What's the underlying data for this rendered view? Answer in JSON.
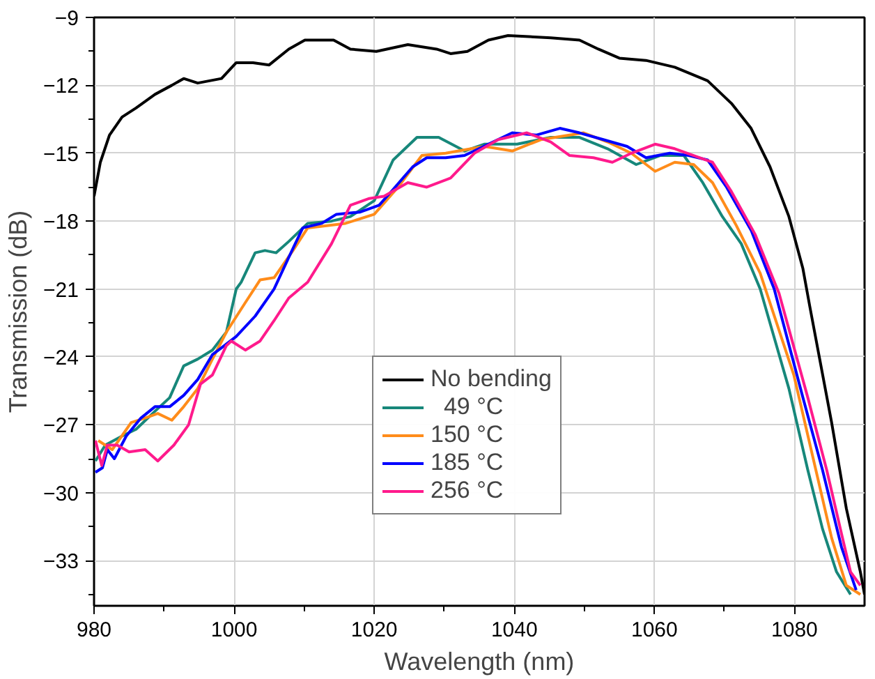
{
  "chart_data": {
    "type": "line",
    "xlabel": "Wavelength (nm)",
    "ylabel": "Transmission (dB)",
    "xlim": [
      980,
      1090
    ],
    "ylim": [
      -35,
      -9
    ],
    "xticks": [
      980,
      {
        "value": 990,
        "label": null
      },
      1000,
      {
        "value": 1010,
        "label": null
      },
      1020,
      {
        "value": 1030,
        "label": null
      },
      1040,
      {
        "value": 1050,
        "label": null
      },
      1060,
      {
        "value": 1070,
        "label": null
      },
      1080
    ],
    "yticks": [
      -9,
      {
        "value": -10.5,
        "label": null
      },
      -12,
      {
        "value": -13.5,
        "label": null
      },
      -15,
      {
        "value": -16.5,
        "label": null
      },
      -18,
      {
        "value": -19.5,
        "label": null
      },
      -21,
      {
        "value": -22.5,
        "label": null
      },
      -24,
      {
        "value": -25.5,
        "label": null
      },
      -27,
      {
        "value": -28.5,
        "label": null
      },
      -30,
      {
        "value": -31.5,
        "label": null
      },
      -33,
      {
        "value": -34.5,
        "label": null
      }
    ],
    "grid": true,
    "legend": "center",
    "marker": "none",
    "line_style": "solid",
    "series": [
      {
        "name": "No bending",
        "color": "#000000",
        "x": [
          980,
          980.9,
          982.2,
          984,
          986,
          988.7,
          991.1,
          992.8,
          994.8,
          998.2,
          1000.3,
          1002.7,
          1005,
          1007.8,
          1010.1,
          1014.2,
          1016.6,
          1020.3,
          1024.8,
          1028.9,
          1030.9,
          1033.3,
          1036.3,
          1039.1,
          1045.2,
          1049.3,
          1052,
          1055,
          1058.8,
          1062.9,
          1067.6,
          1071,
          1073.8,
          1076.5,
          1079.2,
          1081.2,
          1082.2,
          1085.3,
          1087.4,
          1089.4,
          1090
        ],
        "values": [
          -16.9,
          -15.4,
          -14.2,
          -13.4,
          -13.0,
          -12.4,
          -12.0,
          -11.7,
          -11.9,
          -11.7,
          -11.0,
          -11.0,
          -11.1,
          -10.4,
          -10.0,
          -10.0,
          -10.4,
          -10.5,
          -10.2,
          -10.4,
          -10.6,
          -10.5,
          -10.0,
          -9.8,
          -9.9,
          -10.0,
          -10.4,
          -10.8,
          -10.9,
          -11.2,
          -11.8,
          -12.8,
          -13.9,
          -15.6,
          -17.8,
          -20.1,
          -21.8,
          -26.9,
          -30.7,
          -33.5,
          -34.5
        ]
      },
      {
        "name": "  49 °C",
        "color": "#17877a",
        "x": [
          980.2,
          981.6,
          984,
          986,
          988.7,
          990.8,
          992.8,
          994.8,
          996.9,
          998.9,
          1000.3,
          1001,
          1003,
          1004.4,
          1006,
          1007.8,
          1010.5,
          1013.9,
          1016.6,
          1020,
          1022.7,
          1026.1,
          1029.2,
          1032.9,
          1035.7,
          1040.4,
          1045.2,
          1049.3,
          1053.3,
          1057.4,
          1060.8,
          1064.2,
          1066.9,
          1069.7,
          1072.4,
          1075.1,
          1079.2,
          1081.9,
          1084,
          1086,
          1088
        ],
        "values": [
          -28.6,
          -27.9,
          -27.5,
          -27.2,
          -26.4,
          -25.8,
          -24.4,
          -24.1,
          -23.7,
          -22.9,
          -21.0,
          -20.7,
          -19.4,
          -19.3,
          -19.4,
          -18.9,
          -18.1,
          -18.0,
          -17.8,
          -17.1,
          -15.3,
          -14.3,
          -14.3,
          -14.9,
          -14.6,
          -14.6,
          -14.3,
          -14.3,
          -14.8,
          -15.5,
          -15.1,
          -15.1,
          -16.3,
          -17.8,
          -19.0,
          -21.0,
          -25.4,
          -29.0,
          -31.6,
          -33.5,
          -34.5
        ]
      },
      {
        "name": "150 °C",
        "color": "#ff8c1a",
        "x": [
          980.6,
          982.6,
          985.3,
          987.3,
          989.1,
          991.1,
          992.8,
          994.8,
          996.9,
          998.9,
          1001.6,
          1003.7,
          1005.7,
          1008.4,
          1010.5,
          1015.9,
          1020,
          1023.4,
          1026.8,
          1030.2,
          1035.7,
          1039.7,
          1043.8,
          1049.9,
          1053.3,
          1056.7,
          1060.1,
          1062.9,
          1065.6,
          1068.3,
          1071.7,
          1075.1,
          1079.9,
          1082.6,
          1085.3,
          1087.4,
          1089.4
        ],
        "values": [
          -27.7,
          -28.1,
          -26.9,
          -26.7,
          -26.5,
          -26.8,
          -26.2,
          -25.4,
          -24.1,
          -22.9,
          -21.6,
          -20.6,
          -20.5,
          -19.3,
          -18.3,
          -18.1,
          -17.7,
          -16.5,
          -15.1,
          -15.0,
          -14.7,
          -14.9,
          -14.4,
          -14.1,
          -14.5,
          -15.0,
          -15.8,
          -15.4,
          -15.5,
          -16.3,
          -18.2,
          -20.3,
          -24.8,
          -28.4,
          -32.0,
          -34.1,
          -34.5
        ]
      },
      {
        "name": "185 °C",
        "color": "#0000ff",
        "x": [
          980.2,
          981.2,
          981.9,
          982.9,
          984.6,
          986.7,
          988.7,
          990.8,
          992.8,
          994.8,
          996.9,
          998.2,
          1000.3,
          1003,
          1005.7,
          1007.8,
          1009.8,
          1012.5,
          1014.6,
          1018,
          1020.7,
          1022.7,
          1025.5,
          1027.5,
          1030.2,
          1032.9,
          1036.3,
          1039.7,
          1043.1,
          1046.5,
          1049.3,
          1052.7,
          1056.1,
          1058.8,
          1062.2,
          1064.9,
          1067.6,
          1070.3,
          1073.8,
          1077.1,
          1081.2,
          1084,
          1086.7,
          1088.8
        ],
        "values": [
          -29.1,
          -28.9,
          -28.1,
          -28.5,
          -27.5,
          -26.7,
          -26.2,
          -26.2,
          -25.7,
          -25.0,
          -23.9,
          -23.6,
          -23.1,
          -22.2,
          -21.0,
          -19.6,
          -18.3,
          -18.1,
          -17.7,
          -17.6,
          -17.3,
          -16.6,
          -15.6,
          -15.2,
          -15.2,
          -15.1,
          -14.6,
          -14.1,
          -14.2,
          -13.9,
          -14.1,
          -14.4,
          -14.7,
          -15.2,
          -15.0,
          -15.1,
          -15.3,
          -16.5,
          -18.4,
          -21.0,
          -25.8,
          -29.0,
          -32.4,
          -34.3
        ]
      },
      {
        "name": "256 °C",
        "color": "#ff1a8c",
        "x": [
          980.2,
          981.1,
          981.9,
          983.3,
          985,
          987.3,
          989.1,
          991.4,
          993.5,
          995.2,
          996.9,
          998.9,
          999.6,
          1001.6,
          1003.7,
          1005.7,
          1007.8,
          1010.5,
          1013.9,
          1016.6,
          1019.3,
          1021.4,
          1024.8,
          1027.5,
          1030.9,
          1034.3,
          1037.7,
          1041.8,
          1045.2,
          1047.9,
          1051.3,
          1054,
          1056.7,
          1060.1,
          1062.9,
          1065.6,
          1068.3,
          1071,
          1074.4,
          1077.8,
          1081.9,
          1084.6,
          1086.7,
          1088,
          1089.4
        ],
        "values": [
          -27.7,
          -28.8,
          -27.9,
          -27.9,
          -28.2,
          -28.1,
          -28.6,
          -27.9,
          -27.0,
          -25.2,
          -24.8,
          -23.5,
          -23.3,
          -23.7,
          -23.3,
          -22.4,
          -21.4,
          -20.7,
          -19.0,
          -17.3,
          -17.0,
          -16.9,
          -16.3,
          -16.5,
          -16.1,
          -15.0,
          -14.4,
          -14.1,
          -14.5,
          -15.1,
          -15.2,
          -15.4,
          -15.0,
          -14.6,
          -14.8,
          -15.1,
          -15.4,
          -16.7,
          -18.6,
          -21.2,
          -25.8,
          -29.0,
          -31.8,
          -33.5,
          -34.1
        ]
      }
    ]
  }
}
